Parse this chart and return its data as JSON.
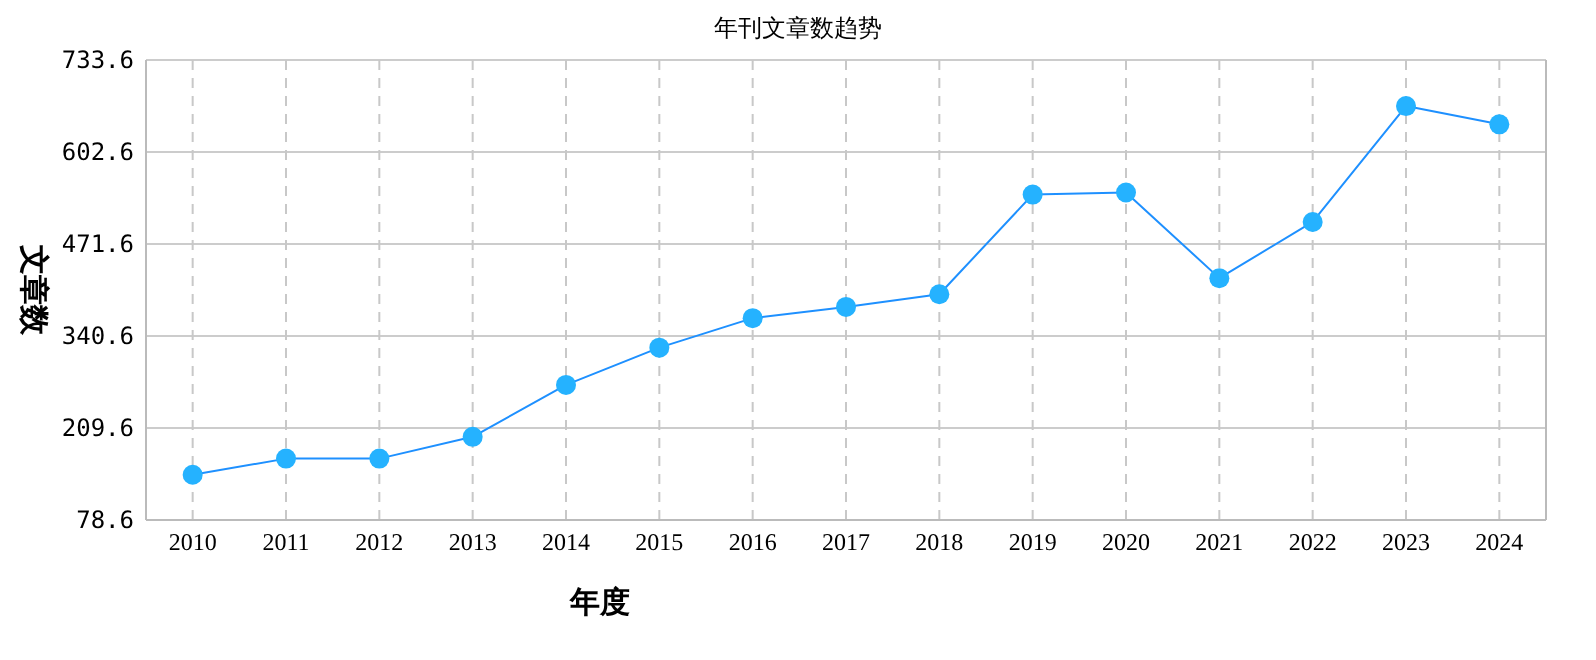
{
  "chart_data": {
    "type": "line",
    "title": "年刊文章数趋势",
    "xlabel": "年度",
    "ylabel": "文章数",
    "categories": [
      "2010",
      "2011",
      "2012",
      "2013",
      "2014",
      "2015",
      "2016",
      "2017",
      "2018",
      "2019",
      "2020",
      "2021",
      "2022",
      "2023",
      "2024"
    ],
    "series": [
      {
        "color": "#1e90ff",
        "values": [
          143,
          166,
          166,
          197,
          271,
          324,
          366,
          382,
          400,
          542,
          545,
          423,
          503,
          668,
          642
        ]
      }
    ],
    "ylim": [
      78.6,
      733.6
    ],
    "yticks": [
      78.6,
      209.6,
      340.6,
      471.6,
      602.6,
      733.6
    ],
    "grid": true,
    "marker": "circle",
    "line_style": "solid"
  }
}
